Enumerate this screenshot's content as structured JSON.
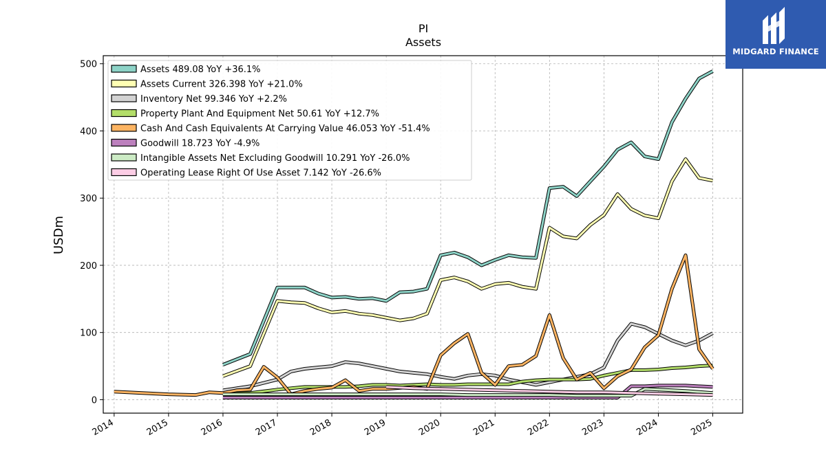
{
  "chart_data": {
    "type": "line",
    "title": "PI",
    "subtitle": "Assets",
    "ylabel": "USDm",
    "xlabel": "",
    "xlim": [
      2013.8,
      2025.55
    ],
    "ylim": [
      -20,
      512
    ],
    "xticks": [
      2014,
      2015,
      2016,
      2017,
      2018,
      2019,
      2020,
      2021,
      2022,
      2023,
      2024,
      2025
    ],
    "yticks": [
      0,
      100,
      200,
      300,
      400,
      500
    ],
    "grid": true,
    "legend_position": "top-left",
    "series": [
      {
        "name": "Assets",
        "label": "Assets  489.08 YoY +36.1%",
        "color": "#8dd3c7",
        "x": [
          2016.0,
          2016.5,
          2017.0,
          2017.25,
          2017.5,
          2017.75,
          2018.0,
          2018.25,
          2018.5,
          2018.75,
          2019.0,
          2019.25,
          2019.5,
          2019.75,
          2020.0,
          2020.25,
          2020.5,
          2020.75,
          2021.0,
          2021.25,
          2021.5,
          2021.75,
          2022.0,
          2022.25,
          2022.5,
          2022.75,
          2023.0,
          2023.25,
          2023.5,
          2023.75,
          2024.0,
          2024.25,
          2024.5,
          2024.75,
          2025.0
        ],
        "y": [
          52,
          68,
          167,
          167,
          167,
          158,
          152,
          153,
          150,
          151,
          147,
          160,
          161,
          165,
          215,
          219,
          212,
          200,
          208,
          215,
          212,
          211,
          315,
          317,
          303,
          325,
          347,
          372,
          383,
          362,
          358,
          413,
          448,
          478,
          489
        ]
      },
      {
        "name": "Assets Current",
        "label": "Assets Current  326.398 YoY +21.0%",
        "color": "#ffffb3",
        "x": [
          2016.0,
          2016.5,
          2017.0,
          2017.25,
          2017.5,
          2017.75,
          2018.0,
          2018.25,
          2018.5,
          2018.75,
          2019.0,
          2019.25,
          2019.5,
          2019.75,
          2020.0,
          2020.25,
          2020.5,
          2020.75,
          2021.0,
          2021.25,
          2021.5,
          2021.75,
          2022.0,
          2022.25,
          2022.5,
          2022.75,
          2023.0,
          2023.25,
          2023.5,
          2023.75,
          2024.0,
          2024.25,
          2024.5,
          2024.75,
          2025.0
        ],
        "y": [
          35,
          50,
          147,
          145,
          144,
          136,
          130,
          132,
          128,
          126,
          122,
          118,
          121,
          128,
          178,
          182,
          176,
          165,
          172,
          174,
          168,
          165,
          256,
          243,
          240,
          260,
          275,
          306,
          284,
          274,
          270,
          325,
          358,
          330,
          326
        ]
      },
      {
        "name": "Inventory Net",
        "label": "Inventory Net  99.346 YoY +2.2%",
        "color": "#d3d3d3",
        "x": [
          2016.0,
          2016.5,
          2017.0,
          2017.25,
          2017.5,
          2017.75,
          2018.0,
          2018.25,
          2018.5,
          2018.75,
          2019.0,
          2019.25,
          2019.5,
          2019.75,
          2020.0,
          2020.25,
          2020.5,
          2020.75,
          2021.0,
          2021.25,
          2021.5,
          2021.75,
          2022.0,
          2022.25,
          2022.5,
          2022.75,
          2023.0,
          2023.25,
          2023.5,
          2023.75,
          2024.0,
          2024.25,
          2024.5,
          2024.75,
          2025.0
        ],
        "y": [
          14,
          20,
          30,
          42,
          46,
          48,
          50,
          56,
          54,
          50,
          46,
          42,
          40,
          38,
          34,
          31,
          36,
          38,
          36,
          30,
          26,
          22,
          26,
          30,
          34,
          38,
          48,
          88,
          113,
          108,
          98,
          88,
          81,
          88,
          99
        ]
      },
      {
        "name": "Property Plant And Equipment Net",
        "label": "Property Plant And Equipment Net  50.61 YoY +12.7%",
        "color": "#b3de69",
        "x": [
          2016.0,
          2016.5,
          2017.0,
          2017.25,
          2017.5,
          2017.75,
          2018.0,
          2018.25,
          2018.5,
          2018.75,
          2019.0,
          2019.25,
          2019.5,
          2019.75,
          2020.0,
          2020.25,
          2020.5,
          2020.75,
          2021.0,
          2021.25,
          2021.5,
          2021.75,
          2022.0,
          2022.25,
          2022.5,
          2022.75,
          2023.0,
          2023.25,
          2023.5,
          2023.75,
          2024.0,
          2024.25,
          2024.5,
          2024.75,
          2025.0
        ],
        "y": [
          9,
          10,
          15,
          17,
          19,
          19,
          19,
          19,
          20,
          22,
          22,
          21,
          22,
          23,
          22,
          22,
          23,
          23,
          23,
          23,
          27,
          29,
          30,
          30,
          30,
          31,
          36,
          40,
          44,
          44,
          45,
          47,
          48,
          50,
          51
        ]
      },
      {
        "name": "Cash And Cash Equivalents At Carrying Value",
        "label": "Cash And Cash Equivalents At Carrying Value  46.053 YoY -51.4%",
        "color": "#fdb462",
        "x": [
          2014.0,
          2015.0,
          2015.5,
          2015.75,
          2016.0,
          2016.25,
          2016.5,
          2016.75,
          2017.0,
          2017.25,
          2017.5,
          2017.75,
          2018.0,
          2018.25,
          2018.5,
          2018.75,
          2019.0,
          2019.5,
          2019.75,
          2020.0,
          2020.25,
          2020.5,
          2020.75,
          2021.0,
          2021.25,
          2021.5,
          2021.75,
          2022.0,
          2022.25,
          2022.5,
          2022.75,
          2023.0,
          2023.25,
          2023.5,
          2023.75,
          2024.0,
          2024.25,
          2024.5,
          2024.75,
          2025.0
        ],
        "y": [
          12,
          8,
          7,
          11,
          10,
          14,
          15,
          49,
          33,
          8,
          13,
          16,
          18,
          29,
          13,
          16,
          16,
          19,
          16,
          66,
          84,
          98,
          40,
          22,
          50,
          52,
          65,
          126,
          62,
          30,
          40,
          17,
          35,
          45,
          78,
          96,
          165,
          215,
          75,
          46
        ]
      },
      {
        "name": "Goodwill",
        "label": "Goodwill  18.723 YoY -4.9%",
        "color": "#bc80bd",
        "x": [
          2016.0,
          2016.5,
          2017.0,
          2017.5,
          2018.0,
          2018.5,
          2019.0,
          2019.5,
          2020.0,
          2020.5,
          2021.0,
          2021.5,
          2022.0,
          2022.5,
          2023.0,
          2023.25,
          2023.5,
          2023.75,
          2024.0,
          2024.5,
          2025.0
        ],
        "y": [
          3,
          3,
          3,
          3,
          3,
          3,
          3,
          3,
          3,
          3,
          3,
          3,
          3,
          3,
          3,
          3,
          20,
          20,
          21,
          21,
          19
        ]
      },
      {
        "name": "Intangible Assets Net Excluding Goodwill",
        "label": "Intangible Assets Net Excluding Goodwill  10.291 YoY -26.0%",
        "color": "#ccebc5",
        "x": [
          2016.0,
          2016.5,
          2017.0,
          2017.5,
          2018.0,
          2018.5,
          2019.0,
          2019.5,
          2020.0,
          2020.5,
          2021.0,
          2021.5,
          2022.0,
          2022.5,
          2023.0,
          2023.5,
          2023.75,
          2024.0,
          2024.5,
          2025.0
        ],
        "y": [
          8,
          8,
          8,
          8,
          8,
          8,
          8,
          8,
          8,
          7,
          7,
          7,
          7,
          6,
          6,
          6,
          16,
          15,
          13,
          10
        ]
      },
      {
        "name": "Operating Lease Right Of Use Asset",
        "label": "Operating Lease Right Of Use Asset  7.142 YoY -26.6%",
        "color": "#fccde5",
        "x": [
          2019.0,
          2019.5,
          2020.0,
          2020.5,
          2021.0,
          2021.5,
          2022.0,
          2022.5,
          2023.0,
          2023.5,
          2024.0,
          2024.5,
          2025.0
        ],
        "y": [
          19,
          17,
          16,
          15,
          14,
          13,
          12,
          11,
          11,
          10,
          9,
          8,
          7
        ]
      }
    ]
  },
  "brand": {
    "name": "MIDGARD FINANCE"
  }
}
